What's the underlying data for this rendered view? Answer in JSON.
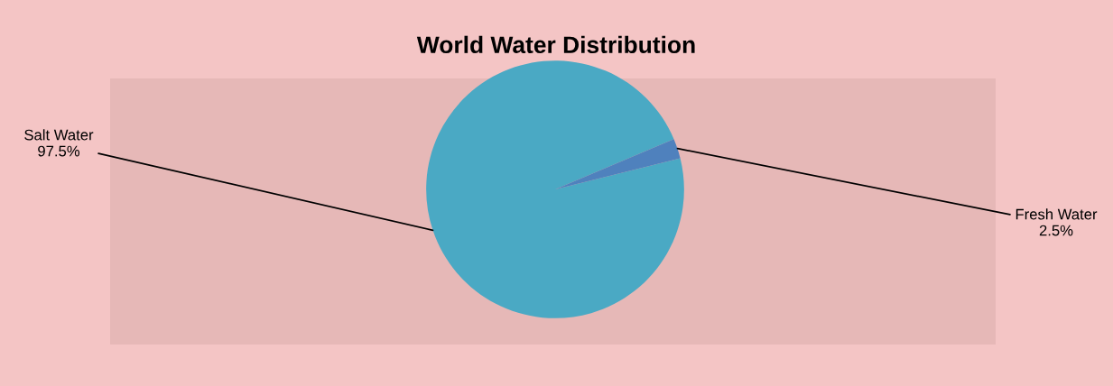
{
  "chart_data": {
    "type": "pie",
    "title": "World Water Distribution",
    "categories": [
      "Salt Water",
      "Fresh Water"
    ],
    "values": [
      97.5,
      2.5
    ],
    "colors": [
      "#4aa9c4",
      "#4f81bd"
    ],
    "value_labels": [
      "97.5%",
      "2.5%"
    ],
    "legend": false
  }
}
